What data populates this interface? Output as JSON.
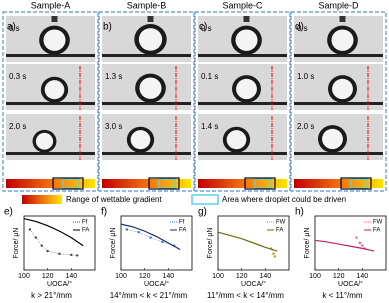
{
  "photos": {
    "panels": [
      {
        "title": "Sample-A",
        "letter": "a)",
        "times": [
          "0 s",
          "0.3 s",
          "2.0 s"
        ]
      },
      {
        "title": "Sample-B",
        "letter": "b)",
        "times": [
          null,
          "1.3 s",
          "3.0 s"
        ]
      },
      {
        "title": "Sample-C",
        "letter": "c)",
        "times": [
          "0 s",
          "0.1 s",
          "1.4 s"
        ]
      },
      {
        "title": "Sample-D",
        "letter": "d)",
        "times": [
          "0 s",
          "1.0 s",
          "2.0 s"
        ]
      }
    ],
    "legend": [
      "Range of  wettable gradient",
      "Area where droplet could be driven"
    ]
  },
  "chart_data": [
    {
      "type": "line",
      "label": "e)",
      "caption": "k > 21°/mm",
      "x_label": "UOCA/°",
      "y_label": "Force/ μN",
      "xlim": [
        100,
        160
      ],
      "xticks": [
        100,
        120,
        140
      ],
      "ylim": [
        0,
        1
      ],
      "series": [
        {
          "name": "Ff",
          "color": "#444444",
          "style": "points",
          "x": [
            105,
            110,
            115,
            120,
            130,
            140,
            145
          ],
          "values": [
            0.75,
            0.6,
            0.45,
            0.35,
            0.3,
            0.28,
            0.27
          ]
        },
        {
          "name": "FA",
          "color": "#000000",
          "style": "line",
          "x": [
            100,
            110,
            120,
            130,
            140,
            150
          ],
          "values": [
            0.95,
            0.9,
            0.82,
            0.72,
            0.6,
            0.45
          ]
        }
      ]
    },
    {
      "type": "line",
      "label": "f)",
      "caption": "14°/mm < k < 21°/mm",
      "x_label": "UOCA/°",
      "y_label": "Force/ μN",
      "xlim": [
        100,
        160
      ],
      "xticks": [
        100,
        120,
        140
      ],
      "ylim": [
        0,
        1
      ],
      "series": [
        {
          "name": "Ff",
          "color": "#3a6fc4",
          "style": "points",
          "x": [
            105,
            115,
            125,
            135,
            145
          ],
          "values": [
            0.75,
            0.7,
            0.6,
            0.52,
            0.45
          ]
        },
        {
          "name": "FA",
          "color": "#1a2a6c",
          "style": "line",
          "x": [
            100,
            110,
            120,
            130,
            140,
            150
          ],
          "values": [
            0.85,
            0.8,
            0.72,
            0.62,
            0.5,
            0.38
          ]
        }
      ]
    },
    {
      "type": "line",
      "label": "g)",
      "caption": "11°/mm < k < 14°/mm",
      "x_label": "UOCA/°",
      "y_label": "Force/ μN",
      "xlim": [
        100,
        160
      ],
      "xticks": [
        100,
        120,
        140
      ],
      "ylim": [
        0,
        1
      ],
      "series": [
        {
          "name": "FW",
          "color": "#a8a030",
          "style": "points",
          "x": [
            145,
            147,
            148
          ],
          "values": [
            0.4,
            0.3,
            0.25
          ]
        },
        {
          "name": "FA",
          "color": "#6b6b10",
          "style": "line",
          "x": [
            100,
            110,
            120,
            130,
            140,
            150
          ],
          "values": [
            0.7,
            0.64,
            0.58,
            0.5,
            0.42,
            0.35
          ]
        }
      ]
    },
    {
      "type": "line",
      "label": "h)",
      "caption": "k < 11°/mm",
      "x_label": "UOCA/°",
      "y_label": "Force/ μN",
      "xlim": [
        100,
        160
      ],
      "xticks": [
        100,
        120,
        140
      ],
      "ylim": [
        0,
        1
      ],
      "series": [
        {
          "name": "FW",
          "color": "#e0609a",
          "style": "points",
          "x": [
            135,
            138,
            140,
            142
          ],
          "values": [
            0.6,
            0.5,
            0.45,
            0.4
          ]
        },
        {
          "name": "FA",
          "color": "#c02070",
          "style": "line",
          "x": [
            100,
            110,
            120,
            130,
            140,
            150
          ],
          "values": [
            0.55,
            0.52,
            0.48,
            0.44,
            0.4,
            0.35
          ]
        }
      ]
    }
  ]
}
